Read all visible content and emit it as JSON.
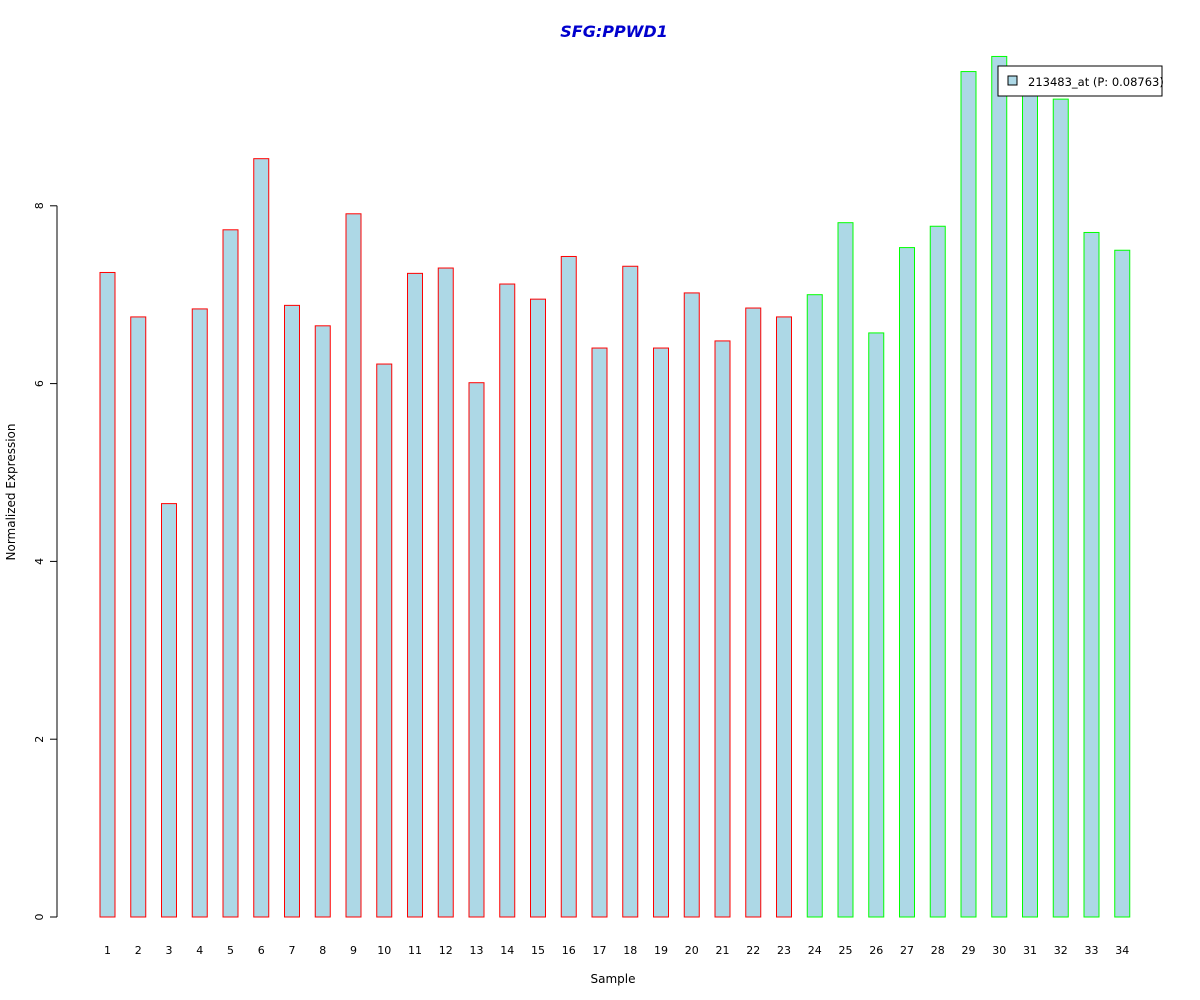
{
  "chart_data": {
    "type": "bar",
    "title": "SFG:PPWD1",
    "xlabel": "Sample",
    "ylabel": "Normalized Expression",
    "ylim": [
      0,
      9.8
    ],
    "yticks": [
      0,
      2,
      4,
      6,
      8
    ],
    "categories": [
      "1",
      "2",
      "3",
      "4",
      "5",
      "6",
      "7",
      "8",
      "9",
      "10",
      "11",
      "12",
      "13",
      "14",
      "15",
      "16",
      "17",
      "18",
      "19",
      "20",
      "21",
      "22",
      "23",
      "24",
      "25",
      "26",
      "27",
      "28",
      "29",
      "30",
      "31",
      "32",
      "33",
      "34"
    ],
    "values": [
      7.25,
      6.75,
      4.65,
      6.84,
      7.73,
      8.53,
      6.88,
      6.65,
      7.91,
      6.22,
      7.24,
      7.3,
      6.01,
      7.12,
      6.95,
      7.43,
      6.4,
      7.32,
      6.4,
      7.02,
      6.48,
      6.85,
      6.75,
      7.0,
      7.81,
      6.57,
      7.53,
      7.77,
      9.51,
      9.68,
      9.35,
      9.2,
      7.7,
      7.5
    ],
    "groups": [
      "red",
      "red",
      "red",
      "red",
      "red",
      "red",
      "red",
      "red",
      "red",
      "red",
      "red",
      "red",
      "red",
      "red",
      "red",
      "red",
      "red",
      "red",
      "red",
      "red",
      "red",
      "red",
      "red",
      "green",
      "green",
      "green",
      "green",
      "green",
      "green",
      "green",
      "green",
      "green",
      "green",
      "green"
    ],
    "colors": {
      "fill": "#add8e6",
      "red": "#ff0000",
      "green": "#00ff00",
      "title": "#0000cd"
    },
    "grid": false,
    "legend": {
      "placement": "top-right",
      "entries": [
        {
          "label": "213483_at (P: 0.08763)"
        }
      ]
    }
  }
}
